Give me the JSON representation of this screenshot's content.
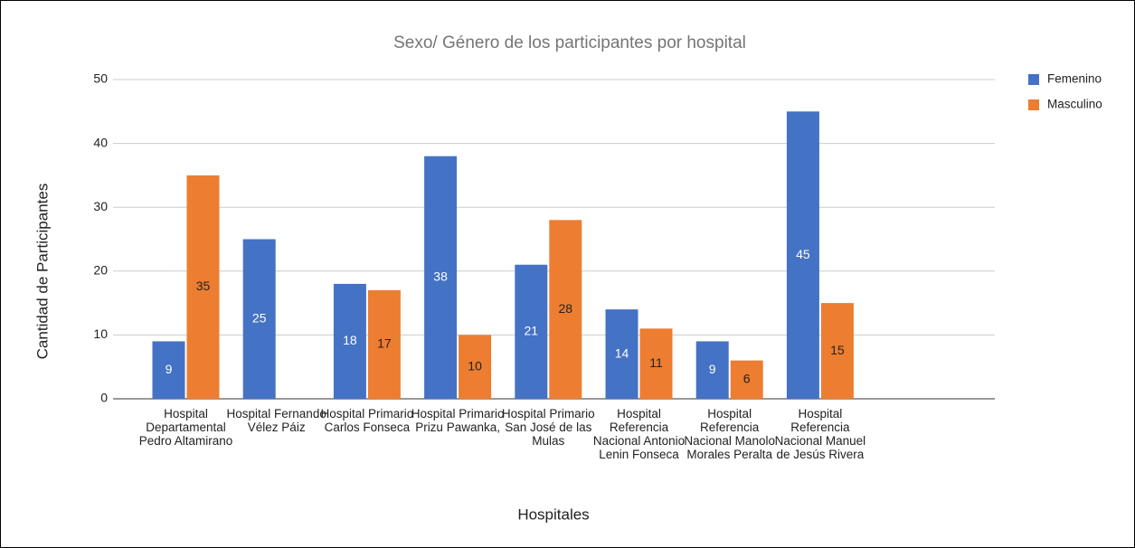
{
  "chart_data": {
    "type": "bar",
    "title": "Sexo/ Género de los participantes por hospital",
    "x_label": "Hospitales",
    "y_label": "Cantidad de Participantes",
    "categories": [
      "Hospital Departamental Pedro Altamirano",
      "Hospital Fernando Vélez Páiz",
      "Hospital Primario Carlos Fonseca",
      "Hospital Primario Prizu Pawanka,",
      "Hospital Primario San José de las Mulas",
      "Hospital Referencia Nacional Antonio Lenin Fonseca",
      "Hospital Referencia Nacional Manolo Morales Peralta",
      "Hospital Referencia Nacional Manuel de Jesús Rivera"
    ],
    "series": [
      {
        "name": "Femenino",
        "color": "#4472c4",
        "label_color": "#ffffff",
        "values": [
          9,
          25,
          18,
          38,
          21,
          14,
          9,
          45
        ]
      },
      {
        "name": "Masculino",
        "color": "#ed7d31",
        "label_color": "#222222",
        "values": [
          35,
          null,
          17,
          10,
          28,
          11,
          6,
          15
        ]
      }
    ],
    "ylim": [
      0,
      50
    ],
    "yticks": [
      0,
      10,
      20,
      30,
      40,
      50
    ],
    "grid": true,
    "legend": "right"
  }
}
